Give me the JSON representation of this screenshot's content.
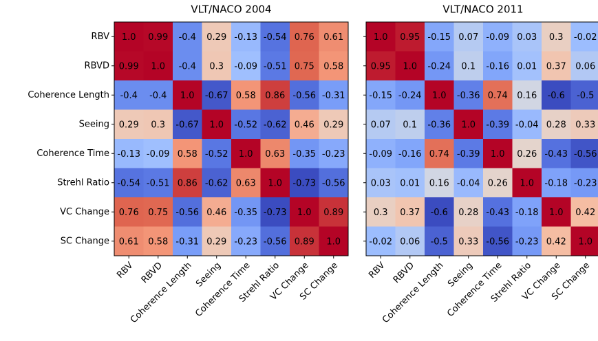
{
  "chart_data": [
    {
      "type": "heatmap",
      "title": "VLT/NACO 2004",
      "cmap": "coolwarm",
      "categories": [
        "RBV",
        "RBVD",
        "Coherence Length",
        "Seeing",
        "Coherence Time",
        "Strehl Ratio",
        "VC Change",
        "SC Change"
      ],
      "values": [
        [
          1.0,
          0.99,
          -0.4,
          0.29,
          -0.13,
          -0.54,
          0.76,
          0.61
        ],
        [
          0.99,
          1.0,
          -0.4,
          0.3,
          -0.09,
          -0.51,
          0.75,
          0.58
        ],
        [
          -0.4,
          -0.4,
          1.0,
          -0.67,
          0.58,
          0.86,
          -0.56,
          -0.31
        ],
        [
          0.29,
          0.3,
          -0.67,
          1.0,
          -0.52,
          -0.62,
          0.46,
          0.29
        ],
        [
          -0.13,
          -0.09,
          0.58,
          -0.52,
          1.0,
          0.63,
          -0.35,
          -0.23
        ],
        [
          -0.54,
          -0.51,
          0.86,
          -0.62,
          0.63,
          1.0,
          -0.73,
          -0.56
        ],
        [
          0.76,
          0.75,
          -0.56,
          0.46,
          -0.35,
          -0.73,
          1.0,
          0.89
        ],
        [
          0.61,
          0.58,
          -0.31,
          0.29,
          -0.23,
          -0.56,
          0.89,
          1.0
        ]
      ],
      "value_labels": [
        [
          "1.0",
          "0.99",
          "-0.4",
          "0.29",
          "-0.13",
          "-0.54",
          "0.76",
          "0.61"
        ],
        [
          "0.99",
          "1.0",
          "-0.4",
          "0.3",
          "-0.09",
          "-0.51",
          "0.75",
          "0.58"
        ],
        [
          "-0.4",
          "-0.4",
          "1.0",
          "-0.67",
          "0.58",
          "0.86",
          "-0.56",
          "-0.31"
        ],
        [
          "0.29",
          "0.3",
          "-0.67",
          "1.0",
          "-0.52",
          "-0.62",
          "0.46",
          "0.29"
        ],
        [
          "-0.13",
          "-0.09",
          "0.58",
          "-0.52",
          "1.0",
          "0.63",
          "-0.35",
          "-0.23"
        ],
        [
          "-0.54",
          "-0.51",
          "0.86",
          "-0.62",
          "0.63",
          "1.0",
          "-0.73",
          "-0.56"
        ],
        [
          "0.76",
          "0.75",
          "-0.56",
          "0.46",
          "-0.35",
          "-0.73",
          "1.0",
          "0.89"
        ],
        [
          "0.61",
          "0.58",
          "-0.31",
          "0.29",
          "-0.23",
          "-0.56",
          "0.89",
          "1.0"
        ]
      ]
    },
    {
      "type": "heatmap",
      "title": "VLT/NACO 2011",
      "cmap": "coolwarm",
      "categories": [
        "RBV",
        "RBVD",
        "Coherence Length",
        "Seeing",
        "Coherence Time",
        "Strehl Ratio",
        "VC Change",
        "SC Change"
      ],
      "values": [
        [
          1.0,
          0.95,
          -0.15,
          0.07,
          -0.09,
          0.03,
          0.3,
          -0.02
        ],
        [
          0.95,
          1.0,
          -0.24,
          0.1,
          -0.16,
          0.01,
          0.37,
          0.06
        ],
        [
          -0.15,
          -0.24,
          1.0,
          -0.36,
          0.74,
          0.16,
          -0.6,
          -0.5
        ],
        [
          0.07,
          0.1,
          -0.36,
          1.0,
          -0.39,
          -0.04,
          0.28,
          0.33
        ],
        [
          -0.09,
          -0.16,
          0.74,
          -0.39,
          1.0,
          0.26,
          -0.43,
          -0.56
        ],
        [
          0.03,
          0.01,
          0.16,
          -0.04,
          0.26,
          1.0,
          -0.18,
          -0.23
        ],
        [
          0.3,
          0.37,
          -0.6,
          0.28,
          -0.43,
          -0.18,
          1.0,
          0.42
        ],
        [
          -0.02,
          0.06,
          -0.5,
          0.33,
          -0.56,
          -0.23,
          0.42,
          1.0
        ]
      ],
      "value_labels": [
        [
          "1.0",
          "0.95",
          "-0.15",
          "0.07",
          "-0.09",
          "0.03",
          "0.3",
          "-0.02"
        ],
        [
          "0.95",
          "1.0",
          "-0.24",
          "0.1",
          "-0.16",
          "0.01",
          "0.37",
          "0.06"
        ],
        [
          "-0.15",
          "-0.24",
          "1.0",
          "-0.36",
          "0.74",
          "0.16",
          "-0.6",
          "-0.5"
        ],
        [
          "0.07",
          "0.1",
          "-0.36",
          "1.0",
          "-0.39",
          "-0.04",
          "0.28",
          "0.33"
        ],
        [
          "-0.09",
          "-0.16",
          "0.74",
          "-0.39",
          "1.0",
          "0.26",
          "-0.43",
          "-0.56"
        ],
        [
          "0.03",
          "0.01",
          "0.16",
          "-0.04",
          "0.26",
          "1.0",
          "-0.18",
          "-0.23"
        ],
        [
          "0.3",
          "0.37",
          "-0.6",
          "0.28",
          "-0.43",
          "-0.18",
          "1.0",
          "0.42"
        ],
        [
          "-0.02",
          "0.06",
          "-0.5",
          "0.33",
          "-0.56",
          "-0.23",
          "0.42",
          "1.0"
        ]
      ]
    }
  ]
}
